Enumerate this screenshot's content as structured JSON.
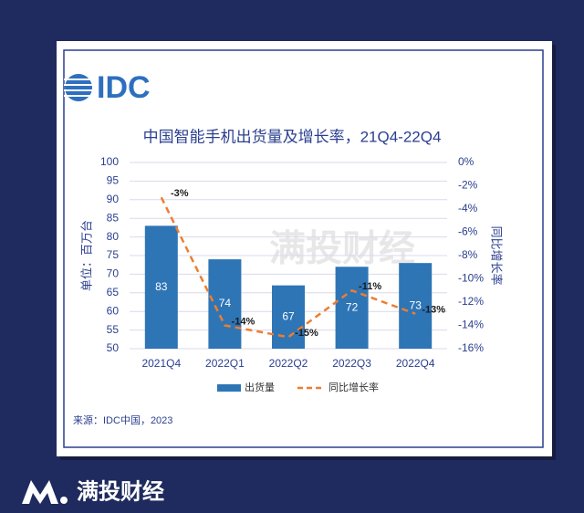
{
  "header": {
    "logo": "IDC",
    "watermark": "满投财经"
  },
  "chart_data": {
    "type": "bar",
    "title": "中国智能手机出货量及增长率，21Q4-22Q4",
    "y_label": "单位：百万台",
    "y2_label": "同比增长率",
    "categories": [
      "2021Q4",
      "2022Q1",
      "2022Q2",
      "2022Q3",
      "2022Q4"
    ],
    "series": [
      {
        "name": "出货量",
        "type": "bar",
        "color": "#2e75b6",
        "values": [
          83,
          74,
          67,
          72,
          73
        ]
      },
      {
        "name": "同比增长率",
        "type": "line",
        "axis": "y2",
        "color": "#ed7d31",
        "values": [
          -3,
          -14,
          -15,
          -11,
          -13
        ],
        "value_labels": [
          "-3%",
          "-14%",
          "-15%",
          "-11%",
          "-13%"
        ]
      }
    ],
    "ylim": [
      50,
      100
    ],
    "yticks": [
      50,
      55,
      60,
      65,
      70,
      75,
      80,
      85,
      90,
      95,
      100
    ],
    "y2lim": [
      -16,
      0
    ],
    "y2ticks": [
      {
        "value": 0,
        "label": "0%"
      },
      {
        "value": -2,
        "label": "-2%"
      },
      {
        "value": -4,
        "label": "-4%"
      },
      {
        "value": -6,
        "label": "-6%"
      },
      {
        "value": -8,
        "label": "-8%"
      },
      {
        "value": -10,
        "label": "-10%"
      },
      {
        "value": -12,
        "label": "-12%"
      },
      {
        "value": -14,
        "label": "-14%"
      },
      {
        "value": -16,
        "label": "-16%"
      }
    ],
    "grid": true,
    "source": "来源：IDC中国，2023"
  },
  "footer": {
    "brand": "满投财经"
  }
}
